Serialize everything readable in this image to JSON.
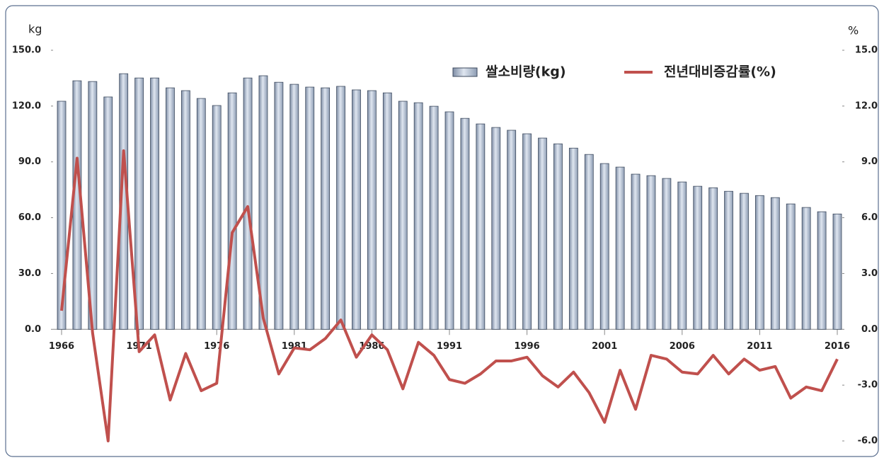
{
  "chart_data": {
    "type": "bar",
    "y_label": "kg",
    "y2_label": "%",
    "categories": [
      "1966",
      null,
      null,
      null,
      null,
      "1971",
      null,
      null,
      null,
      null,
      "1976",
      null,
      null,
      null,
      null,
      "1981",
      null,
      null,
      null,
      null,
      "1986",
      null,
      null,
      null,
      null,
      "1991",
      null,
      null,
      null,
      null,
      "1996",
      null,
      null,
      null,
      null,
      "2001",
      null,
      null,
      null,
      null,
      "2006",
      null,
      null,
      null,
      null,
      "2011",
      null,
      null,
      null,
      null,
      "2016"
    ],
    "series": [
      {
        "name": "쌀소비량(kg)",
        "type": "bar",
        "color": "#a9b8cf",
        "values": [
          122.6,
          133.6,
          133.2,
          124.9,
          137.4,
          135.1,
          135.1,
          129.8,
          128.3,
          124.1,
          120.3,
          127.1,
          135.1,
          136.3,
          132.8,
          131.7,
          130.2,
          129.8,
          130.6,
          128.7,
          128.3,
          127.1,
          122.6,
          121.8,
          119.9,
          116.9,
          113.4,
          110.4,
          108.5,
          107.0,
          105.1,
          102.8,
          99.7,
          97.4,
          94.0,
          89.1,
          87.2,
          83.4,
          82.6,
          81.1,
          79.2,
          76.9,
          76.1,
          74.2,
          73.1,
          71.9,
          70.8,
          67.4,
          65.5,
          63.2,
          62.0
        ]
      },
      {
        "name": "전년대비증감률(%)",
        "type": "line",
        "axis": "y2",
        "color": "#c0504d",
        "values": [
          1.0,
          9.2,
          -0.2,
          -6.0,
          9.6,
          -1.2,
          -0.3,
          -3.8,
          -1.3,
          -3.3,
          -2.9,
          5.2,
          6.6,
          0.6,
          -2.4,
          -1.0,
          -1.1,
          -0.5,
          0.5,
          -1.5,
          -0.3,
          -1.1,
          -3.2,
          -0.7,
          -1.4,
          -2.7,
          -2.9,
          -2.4,
          -1.7,
          -1.7,
          -1.5,
          -2.5,
          -3.1,
          -2.3,
          -3.4,
          -5.0,
          -2.2,
          -4.3,
          -1.4,
          -1.6,
          -2.3,
          -2.4,
          -1.4,
          -2.4,
          -1.6,
          -2.2,
          -2.0,
          -3.7,
          -3.1,
          -3.3,
          -1.6
        ]
      }
    ],
    "ylim": [
      -60,
      150
    ],
    "yticks": [
      {
        "value": 0,
        "label": "0.0"
      },
      {
        "value": 30,
        "label": "30.0"
      },
      {
        "value": 60,
        "label": "60.0"
      },
      {
        "value": 90,
        "label": "90.0"
      },
      {
        "value": 120,
        "label": "120.0"
      },
      {
        "value": 150,
        "label": "150.0"
      }
    ],
    "y2lim": [
      -6,
      15
    ],
    "y2ticks": [
      {
        "value": -6,
        "label": "-6.0"
      },
      {
        "value": -3,
        "label": "-3.0"
      },
      {
        "value": 0,
        "label": "0.0"
      },
      {
        "value": 3,
        "label": "3.0"
      },
      {
        "value": 6,
        "label": "6.0"
      },
      {
        "value": 9,
        "label": "9.0"
      },
      {
        "value": 12,
        "label": "12.0"
      },
      {
        "value": 15,
        "label": "15.0"
      }
    ],
    "legend": "upper right"
  }
}
